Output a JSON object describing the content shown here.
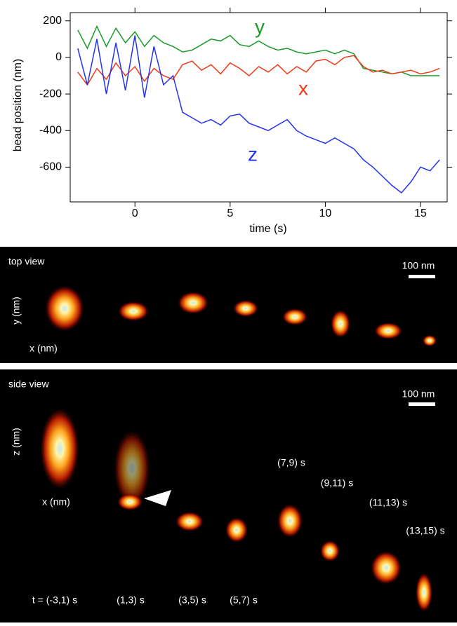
{
  "chart_data": {
    "type": "line",
    "x_label": "time (s)",
    "y_label": "bead position (nm)",
    "x": [
      -3,
      -2.5,
      -2,
      -1.5,
      -1,
      -0.5,
      0,
      0.5,
      1,
      1.5,
      2,
      2.5,
      3,
      3.5,
      4,
      4.5,
      5,
      5.5,
      6,
      6.5,
      7,
      7.5,
      8,
      8.5,
      9,
      9.5,
      10,
      10.5,
      11,
      11.5,
      12,
      12.5,
      13,
      13.5,
      14,
      14.5,
      15,
      15.5,
      16
    ],
    "series": [
      {
        "name": "y",
        "color": "#1a9a2a",
        "values": [
          150,
          50,
          170,
          60,
          160,
          80,
          140,
          60,
          120,
          80,
          60,
          30,
          40,
          70,
          100,
          90,
          120,
          70,
          60,
          90,
          60,
          40,
          50,
          30,
          20,
          30,
          40,
          20,
          40,
          20,
          -60,
          -70,
          -80,
          -90,
          -80,
          -100,
          -100,
          -100,
          -100
        ]
      },
      {
        "name": "x",
        "color": "#f03a17",
        "values": [
          -80,
          -150,
          -60,
          -120,
          -30,
          -100,
          -50,
          -130,
          -60,
          -100,
          -120,
          -40,
          -20,
          -70,
          -40,
          -90,
          -30,
          -60,
          -100,
          -50,
          -80,
          -40,
          -90,
          -50,
          -80,
          -20,
          -10,
          -40,
          0,
          10,
          -50,
          -80,
          -70,
          -90,
          -80,
          -70,
          -90,
          -80,
          -60
        ]
      },
      {
        "name": "z",
        "color": "#2233ee",
        "values": [
          50,
          -150,
          100,
          -200,
          80,
          -180,
          120,
          -220,
          60,
          -150,
          -100,
          -300,
          -330,
          -360,
          -340,
          -370,
          -320,
          -310,
          -360,
          -380,
          -400,
          -370,
          -340,
          -400,
          -430,
          -450,
          -470,
          -440,
          -470,
          -500,
          -560,
          -600,
          -650,
          -700,
          -740,
          -680,
          -600,
          -620,
          -560
        ]
      }
    ],
    "xlim": [
      -3.4,
      16.4
    ],
    "ylim": [
      -790,
      245
    ],
    "xticks": [
      0,
      5,
      10,
      15
    ],
    "yticks": [
      -600,
      -400,
      -200,
      0,
      200
    ]
  },
  "top_panel": {
    "title": "top view",
    "scale_bar": "100 nm",
    "y_label": "y (nm)",
    "x_label": "x (nm)"
  },
  "side_panel": {
    "title": "side view",
    "scale_bar": "100 nm",
    "z_label": "z (nm)",
    "x_label": "x (nm)",
    "time_labels": [
      "t = (-3,1) s",
      "(1,3) s",
      "(3,5) s",
      "(5,7) s",
      "(7,9) s",
      "(9,11) s",
      "(11,13) s",
      "(13,15) s"
    ]
  }
}
